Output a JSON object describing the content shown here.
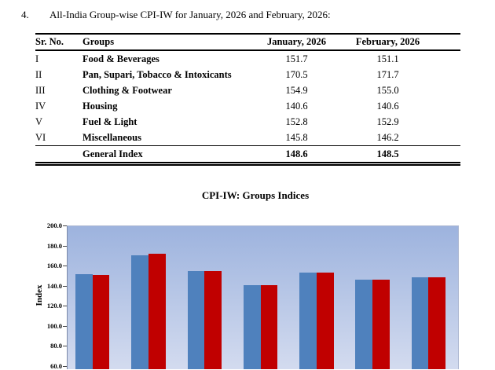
{
  "heading": {
    "number": "4.",
    "text": "All-India Group-wise CPI-IW for January, 2026 and February, 2026:"
  },
  "table": {
    "columns": [
      "Sr. No.",
      "Groups",
      "January, 2026",
      "February, 2026"
    ],
    "rows": [
      {
        "sr": "I",
        "group": "Food & Beverages",
        "jan": "151.7",
        "feb": "151.1"
      },
      {
        "sr": "II",
        "group": "Pan, Supari, Tobacco & Intoxicants",
        "jan": "170.5",
        "feb": "171.7"
      },
      {
        "sr": "III",
        "group": "Clothing & Footwear",
        "jan": "154.9",
        "feb": "155.0"
      },
      {
        "sr": "IV",
        "group": "Housing",
        "jan": "140.6",
        "feb": "140.6"
      },
      {
        "sr": "V",
        "group": "Fuel & Light",
        "jan": "152.8",
        "feb": "152.9"
      },
      {
        "sr": "VI",
        "group": "Miscellaneous",
        "jan": "145.8",
        "feb": "146.2"
      }
    ],
    "footer": {
      "group": "General Index",
      "jan": "148.6",
      "feb": "148.5"
    }
  },
  "chart_data": {
    "type": "bar",
    "title": "CPI-IW: Groups Indices",
    "xlabel": "",
    "ylabel": "Index",
    "categories": [
      "Food & Beverages",
      "Pan, Supari, Tobacco & Intoxicants",
      "Clothing & Footwear",
      "Housing",
      "Fuel & Light",
      "Miscellaneous",
      "General Index"
    ],
    "series": [
      {
        "name": "January, 2026",
        "color": "#4f81bd",
        "values": [
          151.7,
          170.5,
          154.9,
          140.6,
          152.8,
          145.8,
          148.6
        ]
      },
      {
        "name": "February, 2026",
        "color": "#c00000",
        "values": [
          151.1,
          171.7,
          155.0,
          140.6,
          152.9,
          146.2,
          148.5
        ]
      }
    ],
    "y_axis": {
      "ticks": [
        "200.0",
        "180.0",
        "160.0",
        "140.0",
        "120.0",
        "100.0",
        "80.0",
        "60.0"
      ],
      "tick_step": 20,
      "visible_max": 200,
      "visible_min": 60
    },
    "grid": false,
    "legend_visible": false,
    "x_labels_visible": false,
    "plot_bg_top": "#9db3de",
    "plot_bg_bottom": "#d3dbef"
  }
}
